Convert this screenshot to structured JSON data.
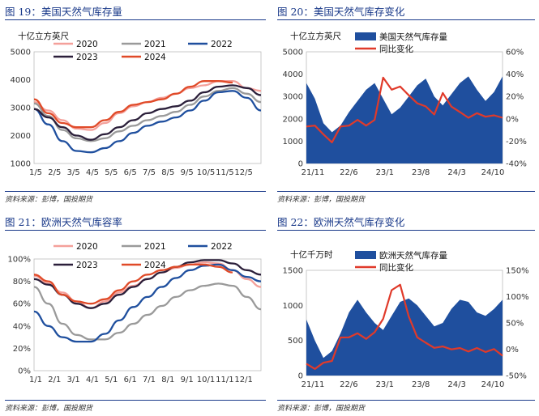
{
  "chart_data": [
    {
      "id": "fig19",
      "figure_label": "图 19：美国天然气库存量",
      "source": "资料来源：彭博，国投期货",
      "type": "line",
      "ylabel": "十亿立方英尺",
      "ylim": [
        1000,
        5000
      ],
      "yticks": [
        "1000",
        "2000",
        "3000",
        "4000",
        "5000"
      ],
      "yticks_v": [
        1000,
        2000,
        3000,
        4000,
        5000
      ],
      "x_ticks": [
        "1/5",
        "2/5",
        "3/5",
        "4/5",
        "5/5",
        "6/5",
        "7/5",
        "8/5",
        "9/5",
        "10/5",
        "11/5",
        "12/5"
      ],
      "legend_position": "top",
      "series": [
        {
          "name": "2020",
          "color": "#f4a09a",
          "values": [
            3200,
            2900,
            2550,
            2250,
            2200,
            2450,
            2800,
            3050,
            3200,
            3350,
            3500,
            3700,
            3800,
            3950,
            3950,
            3700,
            3600
          ]
        },
        {
          "name": "2021",
          "color": "#9a9a9a",
          "values": [
            3150,
            2700,
            2200,
            1900,
            1800,
            1900,
            2150,
            2350,
            2550,
            2700,
            2850,
            3100,
            3400,
            3600,
            3700,
            3500,
            3200
          ]
        },
        {
          "name": "2022",
          "color": "#1f4f9e",
          "values": [
            2950,
            2400,
            1800,
            1450,
            1400,
            1550,
            1800,
            2100,
            2350,
            2500,
            2650,
            2900,
            3250,
            3550,
            3600,
            3350,
            2900
          ]
        },
        {
          "name": "2023",
          "color": "#2b1f3a",
          "values": [
            2950,
            2650,
            2300,
            2000,
            1850,
            2050,
            2300,
            2550,
            2800,
            2950,
            3050,
            3250,
            3550,
            3750,
            3800,
            3700,
            3450
          ]
        },
        {
          "name": "2024",
          "color": "#e04a28",
          "values": [
            3300,
            2800,
            2450,
            2300,
            2300,
            2550,
            2850,
            3100,
            3200,
            3300,
            3500,
            3750,
            3950,
            3950,
            3900
          ]
        }
      ]
    },
    {
      "id": "fig20",
      "figure_label": "图 20：美国天然气库存变化",
      "source": "资料来源：彭博，国投期货",
      "type": "area+line",
      "ylabel": "十亿立方英尺",
      "ylim": [
        0,
        5000
      ],
      "yticks": [
        "0",
        "1000",
        "2000",
        "3000",
        "4000",
        "5000"
      ],
      "yticks_v": [
        0,
        1000,
        2000,
        3000,
        4000,
        5000
      ],
      "y2lim": [
        -40,
        60
      ],
      "y2ticks": [
        "-40%",
        "-20%",
        "0%",
        "20%",
        "40%",
        "60%"
      ],
      "y2ticks_v": [
        -40,
        -20,
        0,
        20,
        40,
        60
      ],
      "x_ticks": [
        "21/11",
        "22/6",
        "23/1",
        "23/8",
        "24/3",
        "24/10"
      ],
      "legend_position": "top",
      "series": [
        {
          "name": "美国天然气库存量",
          "color": "#1f4f9e",
          "values": [
            3600,
            2900,
            1800,
            1400,
            1700,
            2300,
            2800,
            3300,
            3600,
            2900,
            2200,
            2500,
            3000,
            3500,
            3800,
            3000,
            2600,
            3100,
            3600,
            3900,
            3300,
            2800,
            3200,
            3900
          ]
        },
        {
          "name": "同比变化",
          "color": "#e03a2a",
          "values": [
            -8,
            -5,
            -15,
            -20,
            -8,
            -5,
            -2,
            -5,
            -2,
            38,
            25,
            30,
            20,
            15,
            10,
            5,
            22,
            12,
            5,
            2,
            4,
            3,
            2,
            2
          ]
        }
      ]
    },
    {
      "id": "fig21",
      "figure_label": "图 21：欧洲天然气库容率",
      "source": "资料来源：彭博，国投期货",
      "type": "line",
      "ylim": [
        0,
        100
      ],
      "yticks": [
        "0%",
        "20%",
        "40%",
        "60%",
        "80%",
        "100%"
      ],
      "yticks_v": [
        0,
        20,
        40,
        60,
        80,
        100
      ],
      "x_ticks": [
        "1/1",
        "2/1",
        "3/1",
        "4/1",
        "5/1",
        "6/1",
        "7/1",
        "8/1",
        "9/1",
        "10/1",
        "11/1",
        "12/1"
      ],
      "legend_position": "top",
      "series": [
        {
          "name": "2020",
          "color": "#f4a09a",
          "values": [
            85,
            78,
            70,
            62,
            56,
            62,
            70,
            76,
            82,
            88,
            92,
            95,
            97,
            96,
            90,
            82,
            75
          ]
        },
        {
          "name": "2021",
          "color": "#9a9a9a",
          "values": [
            75,
            60,
            42,
            32,
            28,
            28,
            34,
            42,
            50,
            58,
            66,
            72,
            76,
            78,
            76,
            66,
            55
          ]
        },
        {
          "name": "2022",
          "color": "#1f4f9e",
          "values": [
            53,
            40,
            30,
            26,
            26,
            33,
            45,
            57,
            66,
            75,
            83,
            90,
            94,
            95,
            90,
            84,
            80
          ]
        },
        {
          "name": "2023",
          "color": "#2b1f3a",
          "values": [
            82,
            77,
            68,
            60,
            56,
            60,
            68,
            75,
            82,
            88,
            93,
            97,
            99,
            99,
            96,
            90,
            86
          ]
        },
        {
          "name": "2024",
          "color": "#e04a28",
          "values": [
            86,
            80,
            68,
            62,
            60,
            64,
            72,
            80,
            86,
            90,
            93,
            95,
            95,
            93,
            88
          ]
        }
      ]
    },
    {
      "id": "fig22",
      "figure_label": "图 22：欧洲天然气库存变化",
      "source": "资料来源：彭博，国投期货",
      "type": "area+line",
      "ylabel": "十亿千万时",
      "ylim": [
        0,
        1500
      ],
      "yticks": [
        "0",
        "500",
        "1000",
        "1500"
      ],
      "yticks_v": [
        0,
        500,
        1000,
        1500
      ],
      "y2lim": [
        -50,
        150
      ],
      "y2ticks": [
        "-50%",
        "0%",
        "50%",
        "100%",
        "150%"
      ],
      "y2ticks_v": [
        -50,
        0,
        50,
        100,
        150
      ],
      "x_ticks": [
        "21/11",
        "22/6",
        "23/1",
        "23/8",
        "24/3",
        "24/10"
      ],
      "legend_position": "top",
      "series": [
        {
          "name": "欧洲天然气库存量",
          "color": "#1f4f9e",
          "values": [
            800,
            500,
            250,
            350,
            600,
            900,
            1080,
            900,
            750,
            650,
            850,
            1050,
            1100,
            1000,
            850,
            700,
            750,
            950,
            1080,
            1050,
            900,
            850,
            950,
            1080
          ]
        },
        {
          "name": "同比变化",
          "color": "#e03a2a",
          "values": [
            -30,
            -35,
            -28,
            -20,
            20,
            25,
            28,
            22,
            30,
            60,
            110,
            125,
            60,
            25,
            10,
            5,
            3,
            2,
            0,
            -2,
            0,
            -3,
            -2,
            -10
          ]
        }
      ]
    }
  ]
}
